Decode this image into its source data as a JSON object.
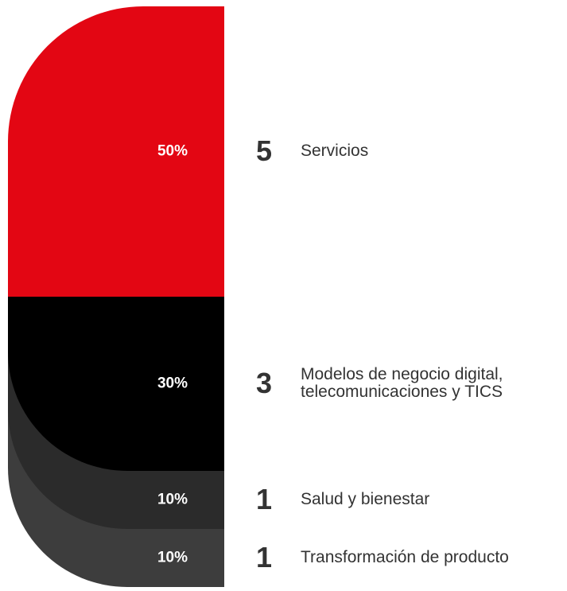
{
  "chart_data": {
    "type": "stacked-pill",
    "categories": [
      [
        "Servicios"
      ],
      [
        "Modelos de negocio digital,",
        "telecomunicaciones y TICS"
      ],
      [
        "Salud y bienestar"
      ],
      [
        "Transformación de producto"
      ]
    ],
    "counts": [
      5,
      3,
      1,
      1
    ],
    "values": [
      50,
      30,
      10,
      10
    ],
    "value_labels": [
      "50%",
      "30%",
      "10%",
      "10%"
    ],
    "colors": [
      "#e30613",
      "#000000",
      "#2b2b2b",
      "#3d3d3d"
    ]
  }
}
